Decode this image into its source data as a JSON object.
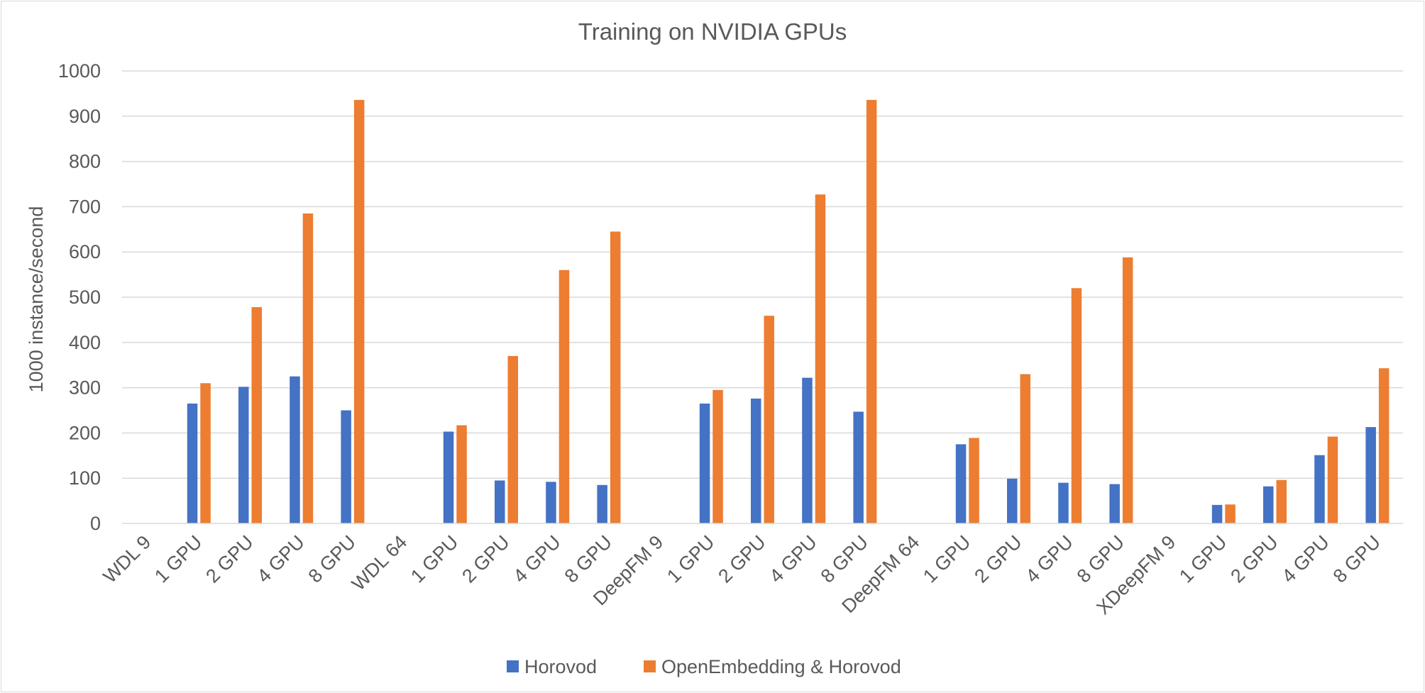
{
  "chart_data": {
    "type": "bar",
    "title": "Training on NVIDIA GPUs",
    "xlabel": "",
    "ylabel": "1000 instance/second",
    "ylim": [
      0,
      1000
    ],
    "yticks": [
      0,
      100,
      200,
      300,
      400,
      500,
      600,
      700,
      800,
      900,
      1000
    ],
    "grid": true,
    "legend_position": "bottom",
    "categories": [
      "WDL 9",
      "1 GPU",
      "2 GPU",
      "4 GPU",
      "8 GPU",
      "WDL 64",
      "1 GPU",
      "2 GPU",
      "4 GPU",
      "8 GPU",
      "DeepFM 9",
      "1 GPU",
      "2 GPU",
      "4 GPU",
      "8 GPU",
      "DeepFM 64",
      "1 GPU",
      "2 GPU",
      "4 GPU",
      "8 GPU",
      "XDeepFM 9",
      "1 GPU",
      "2 GPU",
      "4 GPU",
      "8 GPU"
    ],
    "series": [
      {
        "name": "Horovod",
        "color": "#4472c4",
        "values": [
          null,
          265,
          302,
          325,
          250,
          null,
          203,
          95,
          92,
          85,
          null,
          265,
          276,
          322,
          247,
          null,
          175,
          99,
          90,
          87,
          null,
          41,
          82,
          151,
          213
        ]
      },
      {
        "name": "OpenEmbedding & Horovod",
        "color": "#ed7d31",
        "values": [
          null,
          310,
          478,
          685,
          936,
          null,
          217,
          370,
          560,
          645,
          null,
          295,
          459,
          727,
          936,
          null,
          189,
          330,
          520,
          588,
          null,
          42,
          96,
          192,
          343
        ]
      }
    ]
  }
}
